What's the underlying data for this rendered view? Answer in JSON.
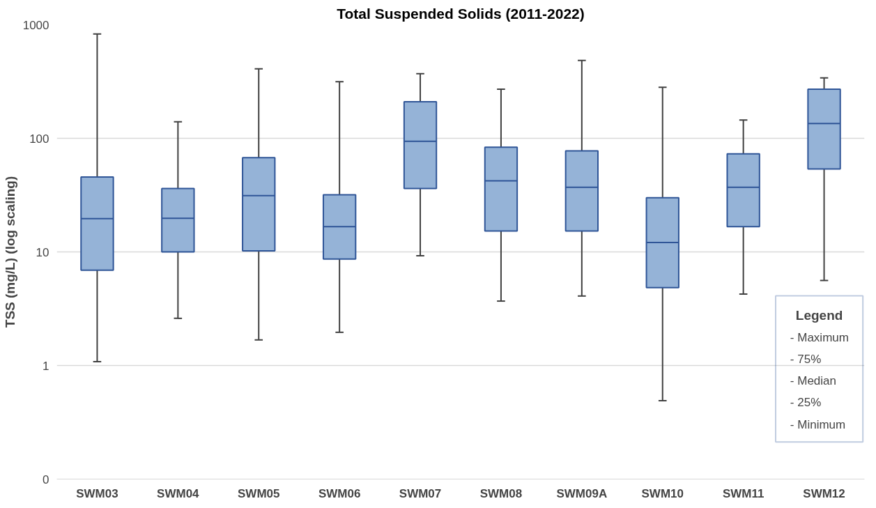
{
  "chart_data": {
    "type": "box",
    "title": "Total Suspended Solids (2011-2022)",
    "ylabel": "TSS (mg/L) (log scaling)",
    "categories": [
      "SWM03",
      "SWM04",
      "SWM05",
      "SWM06",
      "SWM07",
      "SWM08",
      "SWM09A",
      "SWM10",
      "SWM11",
      "SWM12"
    ],
    "color": "#95b3d7",
    "boxes": [
      {
        "low": 1.08,
        "q1": 6.9,
        "median": 19.6,
        "q3": 45.6,
        "high": 830
      },
      {
        "low": 2.6,
        "q1": 10.0,
        "median": 19.8,
        "q3": 36.2,
        "high": 140
      },
      {
        "low": 1.68,
        "q1": 10.2,
        "median": 31.3,
        "q3": 67.5,
        "high": 409
      },
      {
        "low": 1.96,
        "q1": 8.65,
        "median": 16.7,
        "q3": 31.9,
        "high": 315
      },
      {
        "low": 9.25,
        "q1": 36.2,
        "median": 94.2,
        "q3": 210,
        "high": 371
      },
      {
        "low": 3.69,
        "q1": 15.3,
        "median": 42.2,
        "q3": 83.4,
        "high": 271
      },
      {
        "low": 4.09,
        "q1": 15.3,
        "median": 37.1,
        "q3": 77.6,
        "high": 484
      },
      {
        "low": 0.49,
        "q1": 4.84,
        "median": 12.1,
        "q3": 30.0,
        "high": 281
      },
      {
        "low": 4.26,
        "q1": 16.7,
        "median": 37.1,
        "q3": 73,
        "high": 145
      },
      {
        "low": 5.6,
        "q1": 53.7,
        "median": 135,
        "q3": 271,
        "high": 341
      }
    ],
    "log": "y",
    "ylim": [
      0.1,
      1000
    ],
    "yticks": [
      {
        "value": 0.1,
        "label": "0"
      },
      1,
      10,
      100,
      1000
    ],
    "grid": "y",
    "annotations": [
      "Legend",
      "- Maximum",
      "- 75%",
      "- Median",
      "- 25%",
      "- Minimum"
    ]
  }
}
